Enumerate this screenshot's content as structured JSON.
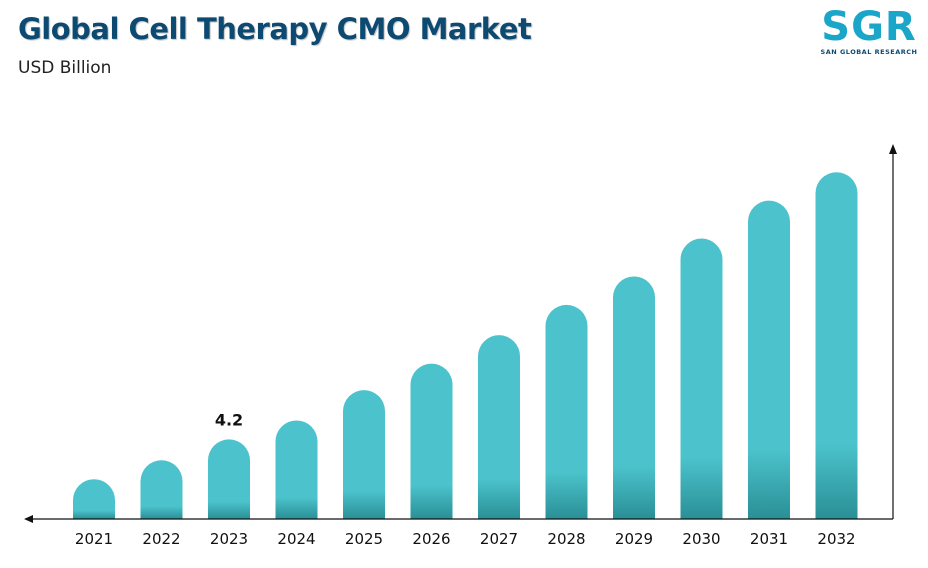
{
  "header": {
    "title": "Global Cell Therapy CMO Market",
    "subtitle": "USD Billion"
  },
  "logo": {
    "mark": "SGR",
    "text": "SAN GLOBAL RESEARCH"
  },
  "colors": {
    "bar": "#4cc3cc",
    "bar_shadow": "#2a8f96",
    "title": "#0d4a72",
    "axis": "#111111"
  },
  "chart_data": {
    "type": "bar",
    "title": "Global Cell Therapy CMO Market",
    "ylabel": "USD Billion",
    "xlabel": "",
    "categories": [
      "2021",
      "2022",
      "2023",
      "2024",
      "2025",
      "2026",
      "2027",
      "2028",
      "2029",
      "2030",
      "2031",
      "2032"
    ],
    "values": [
      2.1,
      3.1,
      4.2,
      5.2,
      6.8,
      8.2,
      9.7,
      11.3,
      12.8,
      14.8,
      16.8,
      18.3
    ],
    "data_labels": [
      {
        "category": "2023",
        "text": "4.2"
      }
    ],
    "ylim": [
      0,
      20
    ],
    "grid": false,
    "legend": "none"
  }
}
